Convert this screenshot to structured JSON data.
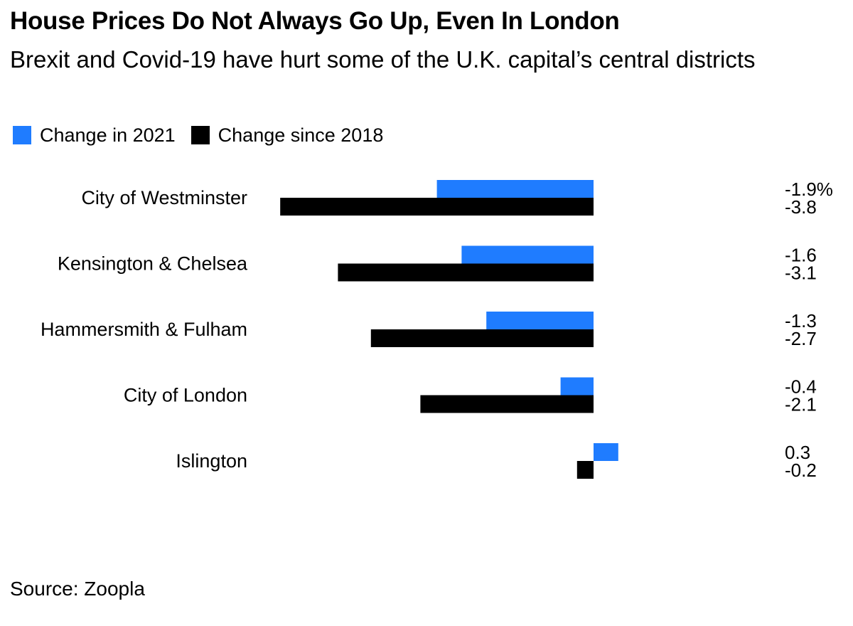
{
  "title": "House Prices Do Not Always Go Up, Even In London",
  "subtitle": "Brexit and Covid-19 have hurt some of the U.K. capital’s central districts",
  "source": "Source: Zoopla",
  "colors": {
    "change_2021": "#1f7cff",
    "change_since_2018": "#000000"
  },
  "chart_data": {
    "type": "bar",
    "orientation": "horizontal",
    "categories": [
      "City of Westminster",
      "Kensington & Chelsea",
      "Hammersmith & Fulham",
      "City of London",
      "Islington"
    ],
    "series": [
      {
        "name": "Change in 2021",
        "values": [
          -1.9,
          -1.6,
          -1.3,
          -0.4,
          0.3
        ],
        "labels": [
          "-1.9%",
          "-1.6",
          "-1.3",
          "-0.4",
          "0.3"
        ]
      },
      {
        "name": "Change since 2018",
        "values": [
          -3.8,
          -3.1,
          -2.7,
          -2.1,
          -0.2
        ],
        "labels": [
          "-3.8",
          "-3.1",
          "-2.7",
          "-2.1",
          "-0.2"
        ]
      }
    ],
    "xlim": [
      -3.8,
      0.3
    ],
    "legend_position": "top-left",
    "grid": false
  }
}
